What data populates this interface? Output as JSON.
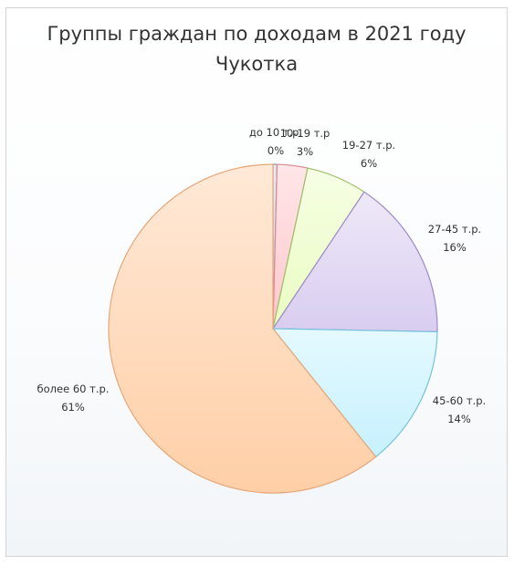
{
  "chart_data": {
    "type": "pie",
    "title": "Группы граждан по доходам в 2021 году",
    "subtitle": "Чукотка",
    "slices": [
      {
        "name": "до 10 т.р.",
        "value": 0.4,
        "label": "0%",
        "color": "#c8d3e6",
        "stroke": "#7d8fb3"
      },
      {
        "name": "10-19 т.р",
        "value": 3,
        "label": "3%",
        "color": "#ffc7cc",
        "stroke": "#d88890"
      },
      {
        "name": "19-27 т.р.",
        "value": 6,
        "label": "6%",
        "color": "#eafcc2",
        "stroke": "#9ec06a"
      },
      {
        "name": "27-45 т.р.",
        "value": 16,
        "label": "16%",
        "color": "#d9cdf0",
        "stroke": "#9d8cc8"
      },
      {
        "name": "45-60 т.р.",
        "value": 14,
        "label": "14%",
        "color": "#c6f1fe",
        "stroke": "#74c3dc"
      },
      {
        "name": "более 60 т.р.",
        "value": 61,
        "label": "61%",
        "color": "#ffcfa7",
        "stroke": "#e7a878"
      }
    ],
    "legend": "none",
    "data_labels": "outside-name-and-percent"
  }
}
